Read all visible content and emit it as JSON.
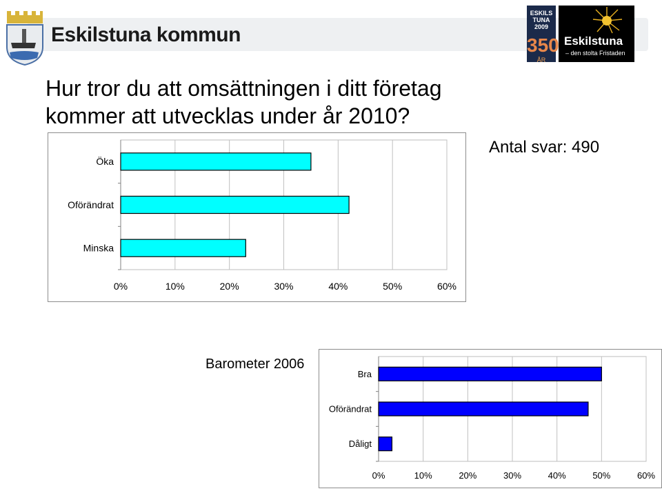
{
  "header": {
    "organization": "Eskilstuna kommun",
    "anniversary_logo": {
      "line1": "ESKILS TUNA 2009",
      "number": "350",
      "suffix": "ÅR"
    },
    "city_logo": {
      "name": "Eskilstuna",
      "tagline": "– den stolta Fristaden"
    },
    "icons": [
      "coat-of-arms-icon"
    ]
  },
  "slide": {
    "title_line1": "Hur tror du att omsättningen i ditt företag",
    "title_line2": "kommer att utvecklas under år 2010?",
    "respondents": "Antal svar: 490",
    "comparison_title": "Barometer 2006"
  },
  "chart_data": [
    {
      "type": "bar",
      "orientation": "horizontal",
      "categories": [
        "Öka",
        "Oförändrat",
        "Minska"
      ],
      "values": [
        35,
        42,
        23
      ],
      "xticks": [
        "0%",
        "10%",
        "20%",
        "30%",
        "40%",
        "50%",
        "60%"
      ],
      "xlim": [
        0,
        60
      ],
      "grid": true,
      "bar_color": "#00ffff"
    },
    {
      "type": "bar",
      "orientation": "horizontal",
      "categories": [
        "Bra",
        "Oförändrat",
        "Dåligt"
      ],
      "values": [
        50,
        47,
        3
      ],
      "xticks": [
        "0%",
        "10%",
        "20%",
        "30%",
        "40%",
        "50%",
        "60%"
      ],
      "xlim": [
        0,
        60
      ],
      "grid": true,
      "bar_color": "#0000ff"
    }
  ]
}
